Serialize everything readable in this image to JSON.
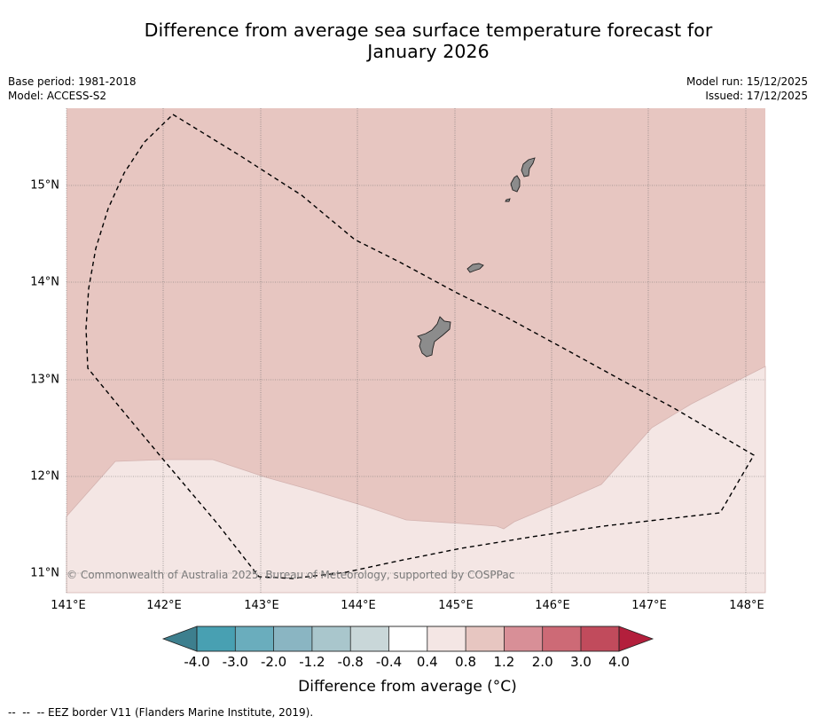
{
  "title_line1": "Difference from average sea surface temperature forecast for",
  "title_line2": "January 2026",
  "meta": {
    "base_period": "Base period: 1981-2018",
    "model": "Model: ACCESS-S2",
    "model_run": "Model run: 15/12/2025",
    "issued": "Issued: 17/12/2025"
  },
  "map": {
    "lat_labels": [
      "15°N",
      "14°N",
      "13°N",
      "12°N",
      "11°N"
    ],
    "lon_labels": [
      "141°E",
      "142°E",
      "143°E",
      "144°E",
      "145°E",
      "146°E",
      "147°E",
      "148°E"
    ],
    "copyright": "© Commonwealth of Australia 2025, Bureau of Meteorology, supported by COSPPac",
    "colors": {
      "anomaly_0_8_to_1_2": "#e7c6c1",
      "anomaly_0_4_to_0_8": "#f4e6e4",
      "land": "#8c8c8c"
    },
    "regions": [
      "0.8 to 1.2 °C (north)",
      "0.4 to 0.8 °C (south)"
    ],
    "features": [
      "EEZ border (dashed)",
      "Guam",
      "Rota",
      "Tinian",
      "Saipan"
    ]
  },
  "colorbar": {
    "title": "Difference from average (°C)",
    "tick_labels": [
      "-4.0",
      "-3.0",
      "-2.0",
      "-1.2",
      "-0.8",
      "-0.4",
      "0.4",
      "0.8",
      "1.2",
      "2.0",
      "3.0",
      "4.0"
    ],
    "colors": [
      "#48a0b2",
      "#6aadbd",
      "#8ab5c2",
      "#a9c6cc",
      "#c9d7d9",
      "#ffffff",
      "#f4e6e4",
      "#e7c6c1",
      "#d88f97",
      "#cd6a76",
      "#c14b5c"
    ],
    "extend_low_color": "#3d7f8e",
    "extend_high_color": "#b31f3c"
  },
  "footer": "--  --  -- EEZ border V11 (Flanders Marine Institute, 2019)."
}
